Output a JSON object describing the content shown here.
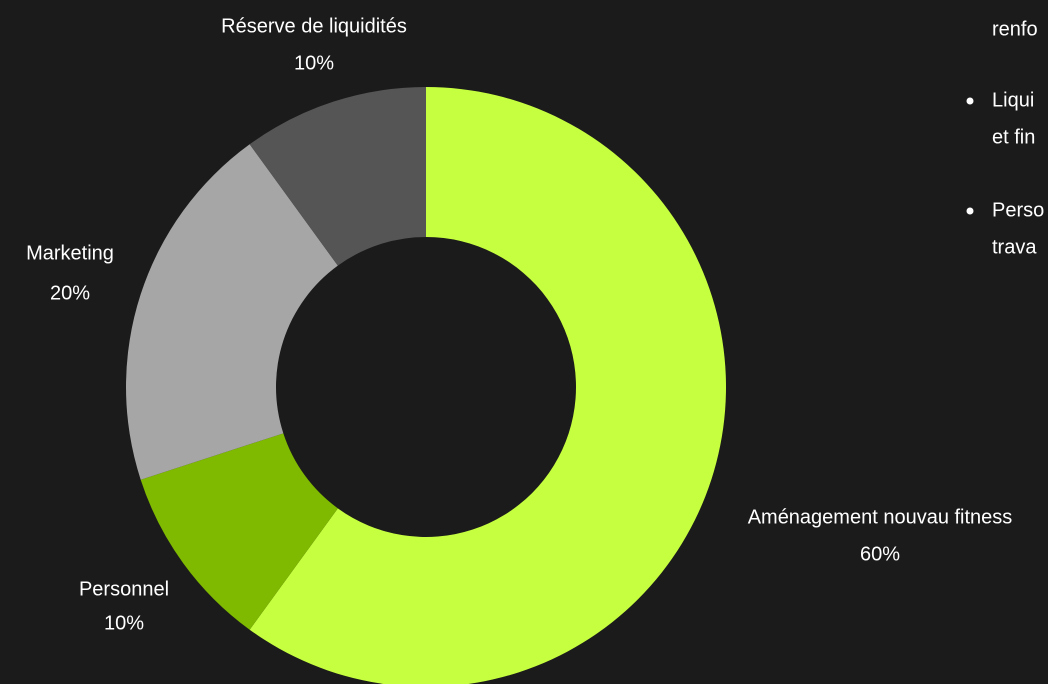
{
  "chart_data": {
    "type": "donut",
    "categories": [
      "Aménagement nouvau fitness",
      "Personnel",
      "Marketing",
      "Réserve de liquidités"
    ],
    "values": [
      60,
      10,
      20,
      10
    ],
    "value_labels": [
      "60%",
      "10%",
      "20%",
      "10%"
    ],
    "colors": [
      "#c6ff3f",
      "#7fba00",
      "#a6a6a6",
      "#555555"
    ]
  },
  "side_notes": {
    "lines": [
      "renfo",
      "Liqui",
      "et fin",
      "Perso",
      "trava"
    ]
  }
}
